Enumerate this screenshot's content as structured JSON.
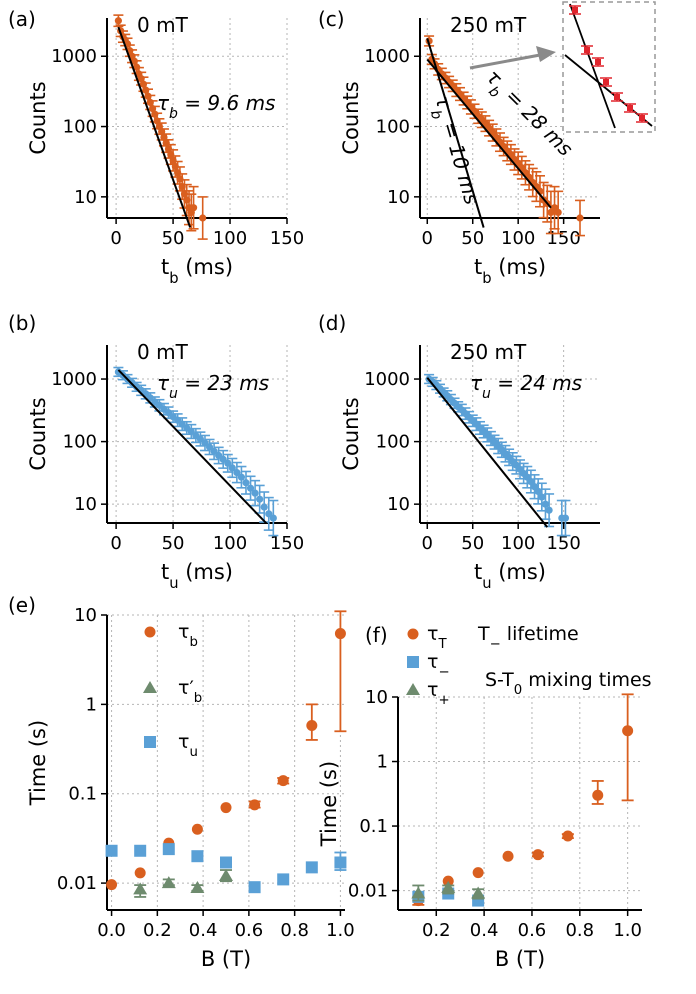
{
  "chart_data": [
    {
      "panel": "(a)",
      "field_label": "0 mT",
      "type": "scatter",
      "xlabel": "t_b (ms)",
      "ylabel": "Counts",
      "yscale": "log",
      "xlim": [
        -8,
        150
      ],
      "ylim": [
        5,
        3500
      ],
      "xticks": [
        0,
        50,
        100,
        150
      ],
      "yticks": [
        10,
        100,
        1000
      ],
      "annotation": "τ_b = 9.6 ms",
      "color": "#d95f1f",
      "fit": [
        {
          "x0": 2,
          "y0": 2600,
          "tau": 9.6,
          "x1": 65
        }
      ],
      "points": [
        [
          2,
          3200
        ],
        [
          4,
          2300
        ],
        [
          6,
          1900
        ],
        [
          8,
          1700
        ],
        [
          10,
          1500
        ],
        [
          12,
          1200
        ],
        [
          14,
          1000
        ],
        [
          16,
          850
        ],
        [
          18,
          700
        ],
        [
          20,
          560
        ],
        [
          22,
          480
        ],
        [
          24,
          400
        ],
        [
          26,
          330
        ],
        [
          28,
          270
        ],
        [
          30,
          220
        ],
        [
          32,
          180
        ],
        [
          34,
          150
        ],
        [
          36,
          120
        ],
        [
          38,
          100
        ],
        [
          40,
          85
        ],
        [
          42,
          70
        ],
        [
          44,
          58
        ],
        [
          46,
          48
        ],
        [
          48,
          40
        ],
        [
          50,
          33
        ],
        [
          52,
          27
        ],
        [
          54,
          22
        ],
        [
          56,
          18
        ],
        [
          58,
          14
        ],
        [
          60,
          11
        ],
        [
          62,
          9
        ],
        [
          64,
          7
        ],
        [
          66,
          6
        ],
        [
          68,
          7
        ],
        [
          76,
          5
        ]
      ],
      "errors": [
        0.08,
        0.08,
        0.08,
        0.08,
        0.08,
        0.08,
        0.09,
        0.09,
        0.09,
        0.09,
        0.09,
        0.1,
        0.1,
        0.1,
        0.1,
        0.11,
        0.11,
        0.11,
        0.11,
        0.12,
        0.12,
        0.13,
        0.13,
        0.14,
        0.15,
        0.15,
        0.16,
        0.17,
        0.18,
        0.2,
        0.22,
        0.24,
        0.26,
        0.3,
        0.3
      ]
    },
    {
      "panel": "(c)",
      "field_label": "250 mT",
      "type": "scatter",
      "xlabel": "t_b (ms)",
      "ylabel": "Counts",
      "yscale": "log",
      "xlim": [
        -8,
        190
      ],
      "ylim": [
        5,
        3500
      ],
      "xticks": [
        0,
        50,
        100,
        150
      ],
      "yticks": [
        10,
        100,
        1000
      ],
      "annotations": [
        "τ_b = 28 ms",
        "τ_b = 10 ms"
      ],
      "color": "#d95f1f",
      "fit": [
        {
          "x0": 0,
          "y0": 1800,
          "tau": 10,
          "x1": 62
        },
        {
          "x0": 0,
          "y0": 900,
          "tau": 28,
          "x1": 136
        }
      ],
      "points": [
        [
          2,
          1650
        ],
        [
          5,
          900
        ],
        [
          8,
          780
        ],
        [
          12,
          650
        ],
        [
          16,
          560
        ],
        [
          20,
          490
        ],
        [
          24,
          430
        ],
        [
          28,
          380
        ],
        [
          32,
          330
        ],
        [
          36,
          290
        ],
        [
          40,
          250
        ],
        [
          44,
          220
        ],
        [
          48,
          190
        ],
        [
          52,
          165
        ],
        [
          56,
          140
        ],
        [
          60,
          125
        ],
        [
          64,
          110
        ],
        [
          68,
          95
        ],
        [
          72,
          82
        ],
        [
          76,
          70
        ],
        [
          80,
          60
        ],
        [
          84,
          52
        ],
        [
          88,
          45
        ],
        [
          92,
          40
        ],
        [
          96,
          34
        ],
        [
          100,
          30
        ],
        [
          104,
          26
        ],
        [
          108,
          22
        ],
        [
          112,
          19
        ],
        [
          116,
          16
        ],
        [
          120,
          14
        ],
        [
          124,
          12
        ],
        [
          128,
          9
        ],
        [
          132,
          8
        ],
        [
          136,
          6
        ],
        [
          140,
          7
        ],
        [
          144,
          6
        ],
        [
          168,
          5
        ]
      ],
      "errors": [
        0.07,
        0.07,
        0.07,
        0.08,
        0.08,
        0.08,
        0.08,
        0.08,
        0.09,
        0.09,
        0.09,
        0.09,
        0.1,
        0.1,
        0.1,
        0.11,
        0.11,
        0.11,
        0.12,
        0.12,
        0.13,
        0.13,
        0.14,
        0.14,
        0.15,
        0.16,
        0.16,
        0.17,
        0.18,
        0.2,
        0.21,
        0.22,
        0.25,
        0.26,
        0.3,
        0.3,
        0.3,
        0.25
      ],
      "inset": true
    },
    {
      "panel": "(b)",
      "field_label": "0 mT",
      "type": "scatter",
      "xlabel": "t_u (ms)",
      "ylabel": "Counts",
      "yscale": "log",
      "xlim": [
        -8,
        150
      ],
      "ylim": [
        5,
        3500
      ],
      "xticks": [
        0,
        50,
        100,
        150
      ],
      "yticks": [
        10,
        100,
        1000
      ],
      "annotation": "τ_u = 23 ms",
      "color": "#5aa0d6",
      "fit": [
        {
          "x0": 2,
          "y0": 1400,
          "tau": 23,
          "x1": 132
        }
      ],
      "points": [
        [
          2,
          1300
        ],
        [
          6,
          1150
        ],
        [
          10,
          1000
        ],
        [
          14,
          870
        ],
        [
          18,
          750
        ],
        [
          22,
          660
        ],
        [
          26,
          580
        ],
        [
          30,
          500
        ],
        [
          34,
          430
        ],
        [
          38,
          380
        ],
        [
          42,
          330
        ],
        [
          46,
          290
        ],
        [
          50,
          250
        ],
        [
          54,
          220
        ],
        [
          58,
          190
        ],
        [
          62,
          165
        ],
        [
          66,
          145
        ],
        [
          70,
          125
        ],
        [
          74,
          110
        ],
        [
          78,
          95
        ],
        [
          82,
          82
        ],
        [
          86,
          70
        ],
        [
          90,
          60
        ],
        [
          94,
          52
        ],
        [
          98,
          45
        ],
        [
          102,
          38
        ],
        [
          106,
          32
        ],
        [
          110,
          27
        ],
        [
          114,
          22
        ],
        [
          118,
          18
        ],
        [
          122,
          15
        ],
        [
          126,
          12
        ],
        [
          130,
          9
        ],
        [
          134,
          7
        ],
        [
          138,
          6
        ]
      ],
      "errors": [
        0.07,
        0.07,
        0.07,
        0.07,
        0.07,
        0.08,
        0.08,
        0.08,
        0.08,
        0.09,
        0.09,
        0.09,
        0.09,
        0.1,
        0.1,
        0.1,
        0.11,
        0.11,
        0.11,
        0.12,
        0.12,
        0.13,
        0.13,
        0.14,
        0.14,
        0.15,
        0.16,
        0.17,
        0.18,
        0.19,
        0.2,
        0.22,
        0.24,
        0.26,
        0.28
      ]
    },
    {
      "panel": "(d)",
      "field_label": "250 mT",
      "type": "scatter",
      "xlabel": "t_u (ms)",
      "ylabel": "Counts",
      "yscale": "log",
      "xlim": [
        -8,
        190
      ],
      "ylim": [
        5,
        3500
      ],
      "xticks": [
        0,
        50,
        100,
        150
      ],
      "yticks": [
        10,
        100,
        1000
      ],
      "annotation": "τ_u = 24 ms",
      "color": "#5aa0d6",
      "fit": [
        {
          "x0": 0,
          "y0": 1050,
          "tau": 24,
          "x1": 132
        }
      ],
      "points": [
        [
          2,
          1000
        ],
        [
          6,
          900
        ],
        [
          10,
          800
        ],
        [
          14,
          700
        ],
        [
          18,
          610
        ],
        [
          22,
          540
        ],
        [
          26,
          470
        ],
        [
          30,
          410
        ],
        [
          34,
          360
        ],
        [
          38,
          320
        ],
        [
          42,
          280
        ],
        [
          46,
          245
        ],
        [
          50,
          215
        ],
        [
          54,
          190
        ],
        [
          58,
          165
        ],
        [
          62,
          145
        ],
        [
          66,
          128
        ],
        [
          70,
          112
        ],
        [
          74,
          98
        ],
        [
          78,
          85
        ],
        [
          82,
          74
        ],
        [
          86,
          64
        ],
        [
          90,
          56
        ],
        [
          94,
          48
        ],
        [
          98,
          42
        ],
        [
          102,
          36
        ],
        [
          106,
          31
        ],
        [
          110,
          27
        ],
        [
          114,
          23
        ],
        [
          118,
          19
        ],
        [
          122,
          16
        ],
        [
          126,
          13
        ],
        [
          130,
          10
        ],
        [
          134,
          8
        ],
        [
          148,
          6
        ],
        [
          152,
          6
        ]
      ],
      "errors": [
        0.07,
        0.07,
        0.07,
        0.07,
        0.07,
        0.08,
        0.08,
        0.08,
        0.08,
        0.09,
        0.09,
        0.09,
        0.09,
        0.1,
        0.1,
        0.1,
        0.11,
        0.11,
        0.11,
        0.12,
        0.12,
        0.13,
        0.13,
        0.14,
        0.14,
        0.15,
        0.16,
        0.17,
        0.18,
        0.19,
        0.2,
        0.22,
        0.24,
        0.26,
        0.28,
        0.28
      ]
    },
    {
      "panel": "(e)",
      "type": "scatter",
      "xlabel": "B (T)",
      "ylabel": "Time (s)",
      "yscale": "log",
      "xlim": [
        -0.02,
        1.02
      ],
      "ylim": [
        0.005,
        10
      ],
      "xticks": [
        0.0,
        0.2,
        0.4,
        0.6,
        0.8,
        1.0
      ],
      "xtick_labels": [
        "0.0",
        "0.2",
        "0.4",
        "0.6",
        "0.8",
        "1.0"
      ],
      "yticks": [
        0.01,
        0.1,
        1,
        10
      ],
      "ytick_labels": [
        "0.01",
        "0.1",
        "1",
        "10"
      ],
      "legend": [
        "τ_b",
        "τ′_b",
        "τ_u"
      ],
      "series": [
        {
          "name": "τ_b",
          "marker": "circle",
          "color": "#d95f1f",
          "x": [
            0.0,
            0.125,
            0.25,
            0.375,
            0.5,
            0.625,
            0.75,
            0.875,
            1.0
          ],
          "y": [
            0.0096,
            0.013,
            0.028,
            0.04,
            0.07,
            0.075,
            0.14,
            0.58,
            6.2
          ],
          "err_lo": [
            0.0096,
            0.013,
            0.028,
            0.04,
            0.07,
            0.07,
            0.13,
            0.4,
            0.5
          ],
          "err_hi": [
            0.0096,
            0.013,
            0.028,
            0.04,
            0.07,
            0.082,
            0.15,
            1.0,
            11
          ]
        },
        {
          "name": "τ′_b",
          "marker": "triangle",
          "color": "#6e8b6e",
          "x": [
            0.125,
            0.25,
            0.375,
            0.5
          ],
          "y": [
            0.0085,
            0.01,
            0.0088,
            0.012
          ],
          "err_lo": [
            0.007,
            0.0095,
            0.0082,
            0.0105
          ],
          "err_hi": [
            0.0095,
            0.011,
            0.0095,
            0.014
          ]
        },
        {
          "name": "τ_u",
          "marker": "square",
          "color": "#5aa0d6",
          "x": [
            0.0,
            0.125,
            0.25,
            0.375,
            0.5,
            0.625,
            0.75,
            0.875,
            1.0
          ],
          "y": [
            0.023,
            0.023,
            0.024,
            0.02,
            0.017,
            0.009,
            0.011,
            0.015,
            0.017
          ],
          "err_lo": [
            0.023,
            0.023,
            0.024,
            0.02,
            0.017,
            0.009,
            0.011,
            0.015,
            0.014
          ],
          "err_hi": [
            0.023,
            0.023,
            0.024,
            0.02,
            0.017,
            0.009,
            0.011,
            0.015,
            0.022
          ]
        }
      ]
    },
    {
      "panel": "(f)",
      "type": "scatter",
      "xlabel": "B (T)",
      "ylabel": "Time (s)",
      "yscale": "log",
      "xlim": [
        0.04,
        1.06
      ],
      "ylim": [
        0.005,
        10
      ],
      "xticks": [
        0.2,
        0.4,
        0.6,
        0.8,
        1.0
      ],
      "xtick_labels": [
        "0.2",
        "0.4",
        "0.6",
        "0.8",
        "1.0"
      ],
      "yticks": [
        0.01,
        0.1,
        1,
        10
      ],
      "ytick_labels": [
        "0.01",
        "0.1",
        "1",
        "10"
      ],
      "legend": [
        "τ_T",
        "τ_−",
        "τ_+"
      ],
      "legend_notes": [
        "T_− lifetime",
        "S-T_0 mixing times"
      ],
      "series": [
        {
          "name": "τ_T",
          "marker": "circle",
          "color": "#d95f1f",
          "x": [
            0.125,
            0.25,
            0.375,
            0.5,
            0.625,
            0.75,
            0.875,
            1.0
          ],
          "y": [
            0.007,
            0.014,
            0.019,
            0.034,
            0.036,
            0.07,
            0.3,
            3.0
          ],
          "err_lo": [
            0.006,
            0.014,
            0.019,
            0.034,
            0.034,
            0.065,
            0.22,
            0.25
          ],
          "err_hi": [
            0.008,
            0.014,
            0.019,
            0.034,
            0.039,
            0.075,
            0.5,
            11
          ]
        },
        {
          "name": "τ_−",
          "marker": "square",
          "color": "#5aa0d6",
          "x": [
            0.125,
            0.25,
            0.375
          ],
          "y": [
            0.008,
            0.009,
            0.007
          ],
          "err_lo": [
            0.008,
            0.009,
            0.007
          ],
          "err_hi": [
            0.008,
            0.009,
            0.007
          ]
        },
        {
          "name": "τ_+",
          "marker": "triangle",
          "color": "#6e8b6e",
          "x": [
            0.125,
            0.25,
            0.375
          ],
          "y": [
            0.009,
            0.011,
            0.009
          ],
          "err_lo": [
            0.007,
            0.009,
            0.0075
          ],
          "err_hi": [
            0.012,
            0.012,
            0.0105
          ]
        }
      ]
    }
  ]
}
